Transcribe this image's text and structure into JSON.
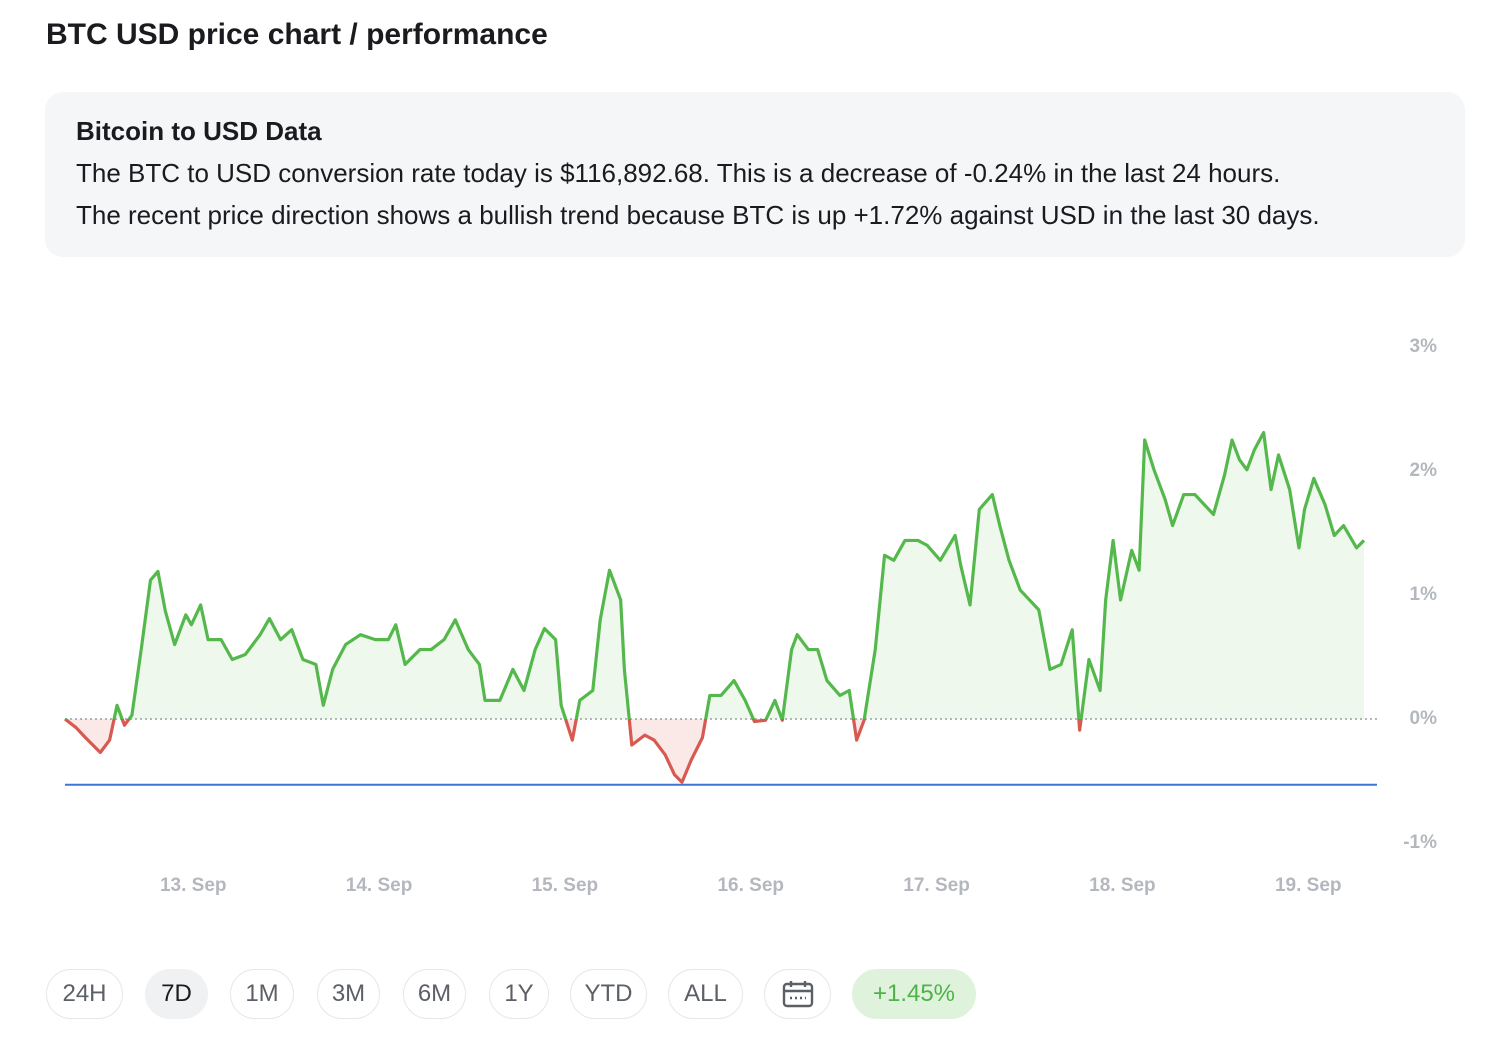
{
  "header": {
    "title": "BTC USD price chart / performance"
  },
  "info": {
    "title": "Bitcoin to USD Data",
    "lines": [
      "The BTC to USD conversion rate today is $116,892.68. This is a decrease of -0.24% in the last 24 hours.",
      "The recent price direction shows a bullish trend because BTC is up +1.72% against USD in the last 30 days."
    ]
  },
  "chart_data": {
    "type": "line",
    "x": [
      12.31,
      12.37,
      12.42,
      12.5,
      12.55,
      12.59,
      12.63,
      12.67,
      12.72,
      12.77,
      12.81,
      12.85,
      12.9,
      12.96,
      12.99,
      13.04,
      13.08,
      13.15,
      13.21,
      13.28,
      13.36,
      13.41,
      13.47,
      13.53,
      13.59,
      13.66,
      13.7,
      13.75,
      13.82,
      13.9,
      13.98,
      14.05,
      14.09,
      14.14,
      14.22,
      14.28,
      14.35,
      14.41,
      14.48,
      14.54,
      14.57,
      14.65,
      14.72,
      14.78,
      14.84,
      14.89,
      14.95,
      14.98,
      15.04,
      15.08,
      15.15,
      15.19,
      15.24,
      15.3,
      15.32,
      15.36,
      15.43,
      15.48,
      15.54,
      15.59,
      15.63,
      15.68,
      15.74,
      15.78,
      15.84,
      15.91,
      15.97,
      16.02,
      16.08,
      16.13,
      16.17,
      16.22,
      16.25,
      16.31,
      16.36,
      16.41,
      16.48,
      16.53,
      16.57,
      16.61,
      16.67,
      16.72,
      16.77,
      16.83,
      16.9,
      16.95,
      17.02,
      17.1,
      17.13,
      17.18,
      17.23,
      17.3,
      17.34,
      17.39,
      17.45,
      17.5,
      17.55,
      17.61,
      17.67,
      17.73,
      17.77,
      17.82,
      17.88,
      17.91,
      17.95,
      17.99,
      18.05,
      18.09,
      18.12,
      18.17,
      18.23,
      18.27,
      18.33,
      18.39,
      18.44,
      18.49,
      18.55,
      18.59,
      18.63,
      18.67,
      18.71,
      18.76,
      18.8,
      18.84,
      18.9,
      18.95,
      18.98,
      19.03,
      19.09,
      19.14,
      19.19,
      19.26,
      19.3
    ],
    "values": [
      0.0,
      -0.07,
      -0.15,
      -0.27,
      -0.17,
      0.11,
      -0.05,
      0.03,
      0.56,
      1.12,
      1.19,
      0.87,
      0.6,
      0.84,
      0.76,
      0.92,
      0.64,
      0.64,
      0.48,
      0.52,
      0.68,
      0.81,
      0.64,
      0.72,
      0.48,
      0.44,
      0.11,
      0.4,
      0.6,
      0.68,
      0.64,
      0.64,
      0.76,
      0.44,
      0.56,
      0.56,
      0.64,
      0.8,
      0.56,
      0.44,
      0.15,
      0.15,
      0.4,
      0.23,
      0.56,
      0.73,
      0.64,
      0.11,
      -0.17,
      0.15,
      0.23,
      0.8,
      1.2,
      0.96,
      0.4,
      -0.21,
      -0.13,
      -0.17,
      -0.29,
      -0.45,
      -0.51,
      -0.33,
      -0.15,
      0.19,
      0.19,
      0.31,
      0.15,
      -0.02,
      -0.01,
      0.15,
      -0.01,
      0.56,
      0.68,
      0.56,
      0.56,
      0.31,
      0.19,
      0.23,
      -0.17,
      -0.01,
      0.56,
      1.32,
      1.28,
      1.44,
      1.44,
      1.4,
      1.28,
      1.48,
      1.24,
      0.92,
      1.69,
      1.81,
      1.56,
      1.28,
      1.04,
      0.96,
      0.88,
      0.4,
      0.44,
      0.72,
      -0.09,
      0.48,
      0.23,
      0.96,
      1.44,
      0.96,
      1.36,
      1.2,
      2.25,
      2.01,
      1.77,
      1.56,
      1.81,
      1.81,
      1.73,
      1.65,
      1.97,
      2.25,
      2.09,
      2.01,
      2.17,
      2.31,
      1.85,
      2.13,
      1.85,
      1.38,
      1.69,
      1.94,
      1.73,
      1.48,
      1.56,
      1.38,
      1.44
    ],
    "color": "#55b84d",
    "negative_color": "#d65a52",
    "fill": "#eef8ec",
    "negative_fill": "#fbe9e7",
    "reference_line": {
      "value": -0.53,
      "color": "#3f74d8"
    },
    "xlim": [
      12.31,
      19.37
    ],
    "xticks": [
      {
        "value": 13,
        "label": "13. Sep"
      },
      {
        "value": 14,
        "label": "14. Sep"
      },
      {
        "value": 15,
        "label": "15. Sep"
      },
      {
        "value": 16,
        "label": "16. Sep"
      },
      {
        "value": 17,
        "label": "17. Sep"
      },
      {
        "value": 18,
        "label": "18. Sep"
      },
      {
        "value": 19,
        "label": "19. Sep"
      }
    ],
    "ylim": [
      -1,
      3
    ],
    "yticks": [
      {
        "value": -1,
        "label": "-1%"
      },
      {
        "value": 0,
        "label": "0%"
      },
      {
        "value": 1,
        "label": "1%"
      },
      {
        "value": 2,
        "label": "2%"
      },
      {
        "value": 3,
        "label": "3%"
      }
    ]
  },
  "buttons": {
    "labels": [
      "24H",
      "7D",
      "1M",
      "3M",
      "6M",
      "1Y",
      "YTD",
      "ALL"
    ],
    "change": "+1.45%"
  }
}
